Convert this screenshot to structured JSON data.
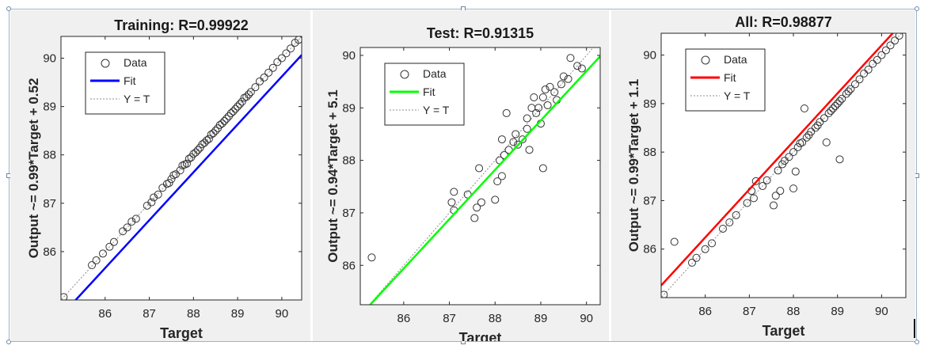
{
  "chart_data": [
    {
      "type": "scatter",
      "title": "Training: R=0.99922",
      "xlabel": "Target",
      "ylabel": "Output ~= 0.99*Target + 0.52",
      "xlim": [
        85.0,
        90.45
      ],
      "ylim": [
        85.0,
        90.45
      ],
      "xticks": [
        "86",
        "87",
        "88",
        "89",
        "90"
      ],
      "yticks": [
        "86",
        "87",
        "88",
        "89",
        "90"
      ],
      "fit": {
        "slope": 0.99,
        "intercept": 0.52,
        "color": "#0000ff"
      },
      "legend": {
        "position": "top-left",
        "entries": [
          "Data",
          "Fit",
          "Y = T"
        ]
      },
      "points": [
        [
          85.06,
          85.06
        ],
        [
          85.7,
          85.72
        ],
        [
          85.8,
          85.82
        ],
        [
          85.95,
          85.96
        ],
        [
          86.1,
          86.1
        ],
        [
          86.2,
          86.2
        ],
        [
          86.4,
          86.42
        ],
        [
          86.5,
          86.5
        ],
        [
          86.6,
          86.62
        ],
        [
          86.7,
          86.68
        ],
        [
          86.95,
          86.95
        ],
        [
          87.05,
          87.02
        ],
        [
          87.1,
          87.12
        ],
        [
          87.2,
          87.18
        ],
        [
          87.3,
          87.32
        ],
        [
          87.4,
          87.4
        ],
        [
          87.45,
          87.42
        ],
        [
          87.5,
          87.5
        ],
        [
          87.55,
          87.58
        ],
        [
          87.6,
          87.6
        ],
        [
          87.7,
          87.68
        ],
        [
          87.75,
          87.78
        ],
        [
          87.8,
          87.8
        ],
        [
          87.85,
          87.82
        ],
        [
          87.9,
          87.92
        ],
        [
          87.95,
          87.95
        ],
        [
          88.0,
          88.02
        ],
        [
          88.05,
          88.05
        ],
        [
          88.1,
          88.1
        ],
        [
          88.15,
          88.15
        ],
        [
          88.2,
          88.22
        ],
        [
          88.25,
          88.25
        ],
        [
          88.3,
          88.3
        ],
        [
          88.35,
          88.33
        ],
        [
          88.4,
          88.42
        ],
        [
          88.45,
          88.45
        ],
        [
          88.5,
          88.5
        ],
        [
          88.55,
          88.55
        ],
        [
          88.6,
          88.62
        ],
        [
          88.65,
          88.65
        ],
        [
          88.7,
          88.7
        ],
        [
          88.75,
          88.75
        ],
        [
          88.8,
          88.8
        ],
        [
          88.85,
          88.86
        ],
        [
          88.9,
          88.9
        ],
        [
          88.95,
          88.95
        ],
        [
          89.0,
          89.0
        ],
        [
          89.05,
          89.05
        ],
        [
          89.1,
          89.1
        ],
        [
          89.15,
          89.18
        ],
        [
          89.2,
          89.2
        ],
        [
          89.25,
          89.25
        ],
        [
          89.3,
          89.3
        ],
        [
          89.4,
          89.4
        ],
        [
          89.5,
          89.52
        ],
        [
          89.6,
          89.6
        ],
        [
          89.7,
          89.7
        ],
        [
          89.8,
          89.8
        ],
        [
          89.9,
          89.92
        ],
        [
          90.0,
          90.0
        ],
        [
          90.1,
          90.1
        ],
        [
          90.2,
          90.2
        ],
        [
          90.3,
          90.32
        ],
        [
          90.38,
          90.38
        ]
      ]
    },
    {
      "type": "scatter",
      "title": "Test: R=0.91315",
      "xlabel": "Target",
      "ylabel": "Output ~= 0.94*Target + 5.1",
      "xlim": [
        85.05,
        90.3
      ],
      "ylim": [
        85.25,
        90.15
      ],
      "xticks": [
        "86",
        "87",
        "88",
        "89",
        "90"
      ],
      "yticks": [
        "86",
        "87",
        "88",
        "89",
        "90"
      ],
      "fit": {
        "slope": 0.94,
        "intercept": 5.1,
        "color": "#00ff00"
      },
      "legend": {
        "position": "top-left",
        "entries": [
          "Data",
          "Fit",
          "Y = T"
        ]
      },
      "points": [
        [
          85.3,
          86.15
        ],
        [
          87.05,
          87.2
        ],
        [
          87.1,
          87.05
        ],
        [
          87.1,
          87.4
        ],
        [
          87.4,
          87.35
        ],
        [
          87.55,
          86.9
        ],
        [
          87.6,
          87.1
        ],
        [
          87.7,
          87.2
        ],
        [
          87.65,
          87.85
        ],
        [
          88.0,
          87.25
        ],
        [
          88.05,
          87.6
        ],
        [
          88.1,
          88.0
        ],
        [
          88.15,
          87.7
        ],
        [
          88.15,
          88.4
        ],
        [
          88.2,
          88.1
        ],
        [
          88.25,
          88.9
        ],
        [
          88.3,
          88.2
        ],
        [
          88.4,
          88.35
        ],
        [
          88.45,
          88.5
        ],
        [
          88.5,
          88.3
        ],
        [
          88.6,
          88.4
        ],
        [
          88.7,
          88.8
        ],
        [
          88.7,
          88.6
        ],
        [
          88.75,
          88.2
        ],
        [
          88.8,
          89.0
        ],
        [
          88.85,
          89.2
        ],
        [
          88.9,
          88.9
        ],
        [
          88.95,
          89.0
        ],
        [
          89.0,
          88.7
        ],
        [
          89.05,
          87.85
        ],
        [
          89.05,
          89.2
        ],
        [
          89.1,
          89.35
        ],
        [
          89.15,
          89.05
        ],
        [
          89.2,
          89.4
        ],
        [
          89.3,
          89.3
        ],
        [
          89.35,
          89.15
        ],
        [
          89.45,
          89.45
        ],
        [
          89.5,
          89.6
        ],
        [
          89.6,
          89.55
        ],
        [
          89.65,
          89.95
        ],
        [
          89.8,
          89.8
        ],
        [
          89.9,
          89.75
        ]
      ]
    },
    {
      "type": "scatter",
      "title": "All: R=0.98877",
      "xlabel": "Target",
      "ylabel": "Output ~= 0.99*Target + 1.1",
      "xlim": [
        85.0,
        90.55
      ],
      "ylim": [
        85.0,
        90.45
      ],
      "xticks": [
        "86",
        "87",
        "88",
        "89",
        "90"
      ],
      "yticks": [
        "86",
        "87",
        "88",
        "89",
        "90"
      ],
      "fit": {
        "slope": 0.99,
        "intercept": 1.1,
        "color": "#ff0000"
      },
      "legend": {
        "position": "top-left",
        "entries": [
          "Data",
          "Fit",
          "Y = T"
        ]
      },
      "points": [
        [
          85.06,
          85.06
        ],
        [
          85.3,
          86.15
        ],
        [
          85.7,
          85.72
        ],
        [
          85.8,
          85.82
        ],
        [
          86.0,
          86.0
        ],
        [
          86.15,
          86.12
        ],
        [
          86.4,
          86.42
        ],
        [
          86.55,
          86.55
        ],
        [
          86.7,
          86.7
        ],
        [
          86.95,
          86.95
        ],
        [
          87.05,
          87.2
        ],
        [
          87.1,
          87.05
        ],
        [
          87.15,
          87.4
        ],
        [
          87.3,
          87.3
        ],
        [
          87.4,
          87.42
        ],
        [
          87.55,
          86.9
        ],
        [
          87.6,
          87.1
        ],
        [
          87.65,
          87.62
        ],
        [
          87.7,
          87.2
        ],
        [
          87.75,
          87.75
        ],
        [
          87.8,
          87.82
        ],
        [
          87.9,
          87.9
        ],
        [
          88.0,
          88.0
        ],
        [
          88.0,
          87.25
        ],
        [
          88.05,
          87.6
        ],
        [
          88.1,
          88.1
        ],
        [
          88.15,
          88.18
        ],
        [
          88.2,
          88.2
        ],
        [
          88.25,
          88.9
        ],
        [
          88.3,
          88.3
        ],
        [
          88.35,
          88.35
        ],
        [
          88.4,
          88.42
        ],
        [
          88.5,
          88.5
        ],
        [
          88.55,
          88.55
        ],
        [
          88.6,
          88.62
        ],
        [
          88.7,
          88.7
        ],
        [
          88.75,
          88.2
        ],
        [
          88.8,
          88.8
        ],
        [
          88.85,
          88.85
        ],
        [
          88.9,
          88.9
        ],
        [
          88.95,
          88.95
        ],
        [
          89.0,
          89.0
        ],
        [
          89.05,
          87.85
        ],
        [
          89.05,
          89.05
        ],
        [
          89.1,
          89.1
        ],
        [
          89.2,
          89.2
        ],
        [
          89.25,
          89.25
        ],
        [
          89.3,
          89.3
        ],
        [
          89.4,
          89.4
        ],
        [
          89.5,
          89.5
        ],
        [
          89.6,
          89.62
        ],
        [
          89.7,
          89.7
        ],
        [
          89.8,
          89.82
        ],
        [
          89.9,
          89.9
        ],
        [
          90.0,
          90.0
        ],
        [
          90.1,
          90.1
        ],
        [
          90.2,
          90.2
        ],
        [
          90.3,
          90.3
        ],
        [
          90.4,
          90.4
        ]
      ]
    }
  ]
}
